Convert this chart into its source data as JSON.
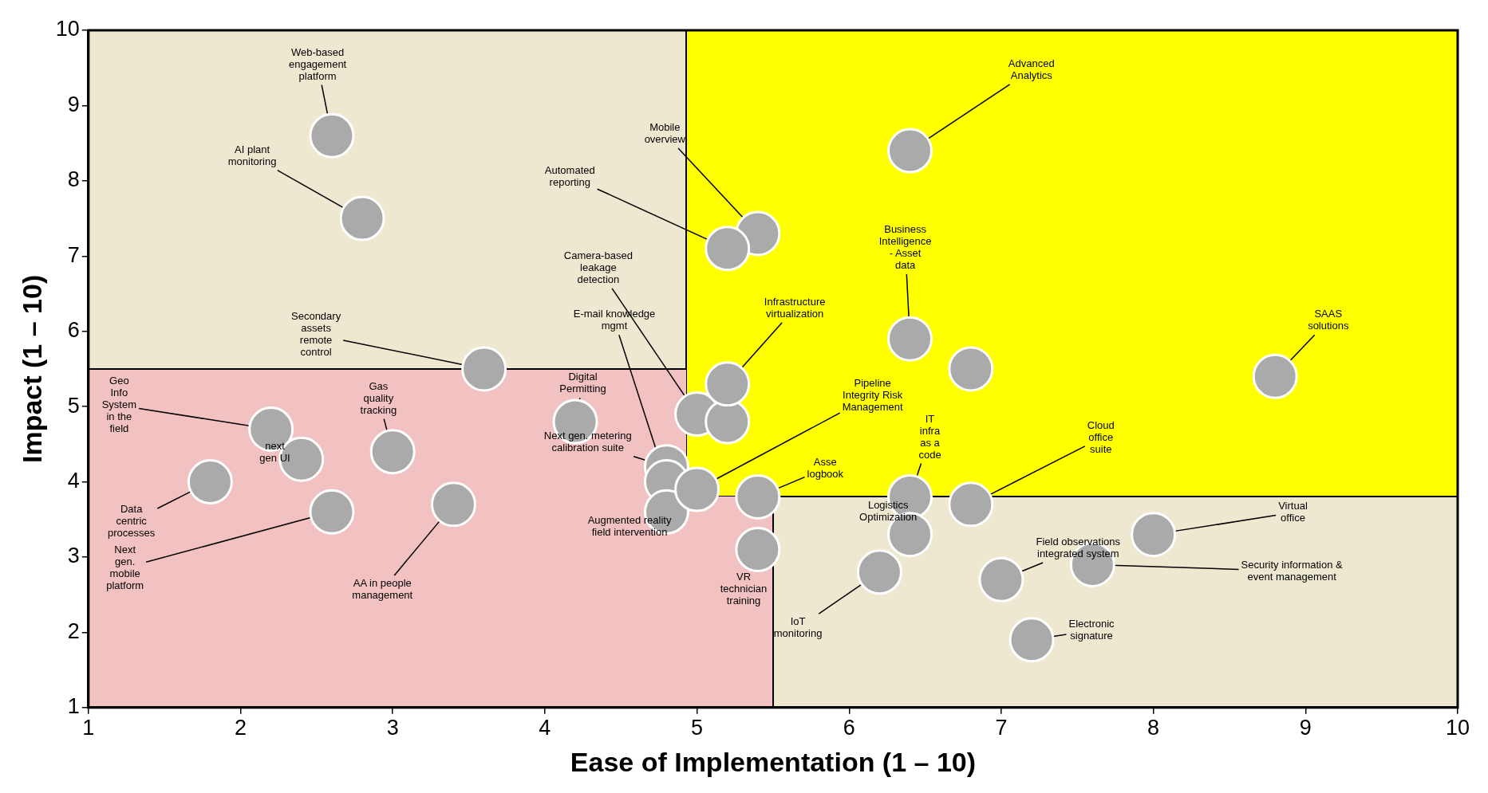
{
  "chart_data": {
    "type": "scatter",
    "xlabel": "Ease of Implementation (1 – 10)",
    "ylabel": "Impact (1 – 10)",
    "xlim": [
      1,
      10
    ],
    "ylim": [
      1,
      10
    ],
    "xticks": [
      1,
      2,
      3,
      4,
      5,
      6,
      7,
      8,
      9,
      10
    ],
    "yticks": [
      1,
      2,
      3,
      4,
      5,
      6,
      7,
      8,
      9,
      10
    ],
    "marker": "circle",
    "legend": false,
    "series": [
      {
        "color": "#aaaaaa",
        "x": [
          2.6,
          2.8,
          3.6,
          2.2,
          2.4,
          3.0,
          1.8,
          2.6,
          3.4,
          4.2,
          4.8,
          4.8,
          4.8,
          5.0,
          5.0,
          5.2,
          5.2,
          5.4,
          5.2,
          6.4,
          6.4,
          6.8,
          8.8,
          5.4,
          5.4,
          6.4,
          6.4,
          6.8,
          6.2,
          7.0,
          7.6,
          8.0,
          7.2
        ],
        "values": [
          8.6,
          7.5,
          5.5,
          4.7,
          4.3,
          4.4,
          4.0,
          3.6,
          3.7,
          4.8,
          4.2,
          4.0,
          3.6,
          4.9,
          3.9,
          4.8,
          5.3,
          7.3,
          7.1,
          8.4,
          5.9,
          5.5,
          5.4,
          3.8,
          3.1,
          3.8,
          3.3,
          3.7,
          2.8,
          2.7,
          2.9,
          3.3,
          1.9
        ]
      }
    ],
    "annotations": [
      {
        "text": "Web-based\nengagement\nplatform",
        "x": 2.6,
        "y": 8.6
      },
      {
        "text": "AI plant\nmonitoring",
        "x": 2.8,
        "y": 7.5
      },
      {
        "text": "Secondary\nassets\nremote\ncontrol",
        "x": 3.6,
        "y": 5.5
      },
      {
        "text": "Geo\nInfo\nSystem\nin the\nfield",
        "x": 2.2,
        "y": 4.7
      },
      {
        "text": "next\ngen UI",
        "x": 2.4,
        "y": 4.3
      },
      {
        "text": "Gas\nquality\ntracking",
        "x": 3.0,
        "y": 4.4
      },
      {
        "text": "Data\ncentric\nprocesses",
        "x": 1.8,
        "y": 4.0
      },
      {
        "text": "Next\ngen.\nmobile\nplatform",
        "x": 2.6,
        "y": 3.6
      },
      {
        "text": "AA in people\nmanagement",
        "x": 3.4,
        "y": 3.7
      },
      {
        "text": "Digital\nPermitting",
        "x": 4.2,
        "y": 4.8
      },
      {
        "text": "Next gen. metering\ncalibration suite",
        "x": 4.8,
        "y": 4.2
      },
      {
        "text": "E-mail knowledge\nmgmt",
        "x": 4.8,
        "y": 4.0
      },
      {
        "text": "Augmented reality\nfield intervention",
        "x": 4.8,
        "y": 3.6
      },
      {
        "text": "Camera-based\nleakage\ndetection",
        "x": 5.0,
        "y": 4.9
      },
      {
        "text": "Pipeline\nIntegrity Risk\nManagement",
        "x": 5.0,
        "y": 3.9
      },
      {
        "text": "Infrastructure\nvirtualization",
        "x": 5.2,
        "y": 5.3
      },
      {
        "text": "Mobile\noverview",
        "x": 5.4,
        "y": 7.3
      },
      {
        "text": "Automated\nreporting",
        "x": 5.2,
        "y": 7.1
      },
      {
        "text": "Advanced\nAnalytics",
        "x": 6.4,
        "y": 8.4
      },
      {
        "text": "Business\nIntelligence\n- Asset\ndata",
        "x": 6.4,
        "y": 5.9
      },
      {
        "text": "SAAS\nsolutions",
        "x": 8.8,
        "y": 5.4
      },
      {
        "text": "Asse\nlogbook",
        "x": 5.4,
        "y": 3.8
      },
      {
        "text": "VR\ntechnician\ntraining",
        "x": 5.4,
        "y": 3.1
      },
      {
        "text": "IT\ninfra\nas a\ncode",
        "x": 6.4,
        "y": 3.8
      },
      {
        "text": "Logistics\nOptimization",
        "x": 6.4,
        "y": 3.3
      },
      {
        "text": "Cloud\noffice\nsuite",
        "x": 6.8,
        "y": 3.7
      },
      {
        "text": "IoT\nmonitoring",
        "x": 6.2,
        "y": 2.8
      },
      {
        "text": "Field observations\nintegrated system",
        "x": 7.0,
        "y": 2.7
      },
      {
        "text": "Security information &\nevent management",
        "x": 7.6,
        "y": 2.9
      },
      {
        "text": "Virtual\noffice",
        "x": 8.0,
        "y": 3.3
      },
      {
        "text": "Electronic\nsignature",
        "x": 7.2,
        "y": 1.9
      }
    ]
  }
}
